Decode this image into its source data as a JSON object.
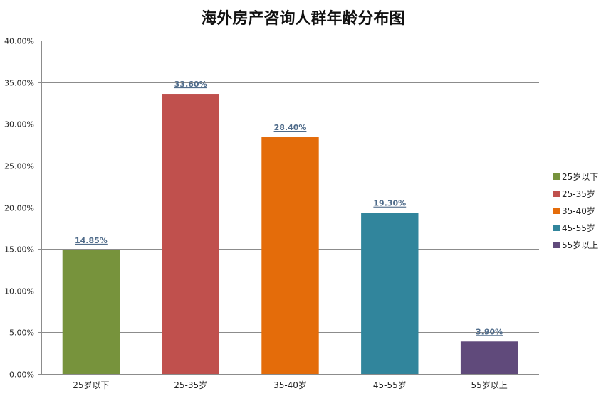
{
  "chart_data": {
    "type": "bar",
    "title": "海外房产咨询人群年龄分布图",
    "xlabel": "",
    "ylabel": "",
    "categories": [
      "25岁以下",
      "25-35岁",
      "35-40岁",
      "45-55岁",
      "55岁以上"
    ],
    "values": [
      14.85,
      33.6,
      28.4,
      19.3,
      3.9
    ],
    "data_labels": [
      "14.85%",
      "33.60%",
      "28.40%",
      "19.30%",
      "3.90%"
    ],
    "colors": [
      "#77933C",
      "#C0504D",
      "#E46C0A",
      "#31859C",
      "#604A7B"
    ],
    "ylim": [
      0,
      40
    ],
    "y_ticks": [
      "0.00%",
      "5.00%",
      "10.00%",
      "15.00%",
      "20.00%",
      "25.00%",
      "30.00%",
      "35.00%",
      "40.00%"
    ],
    "grid": true,
    "legend": {
      "position": "right",
      "entries": [
        "25岁以下",
        "25-35岁",
        "35-40岁",
        "45-55岁",
        "55岁以上"
      ]
    }
  }
}
